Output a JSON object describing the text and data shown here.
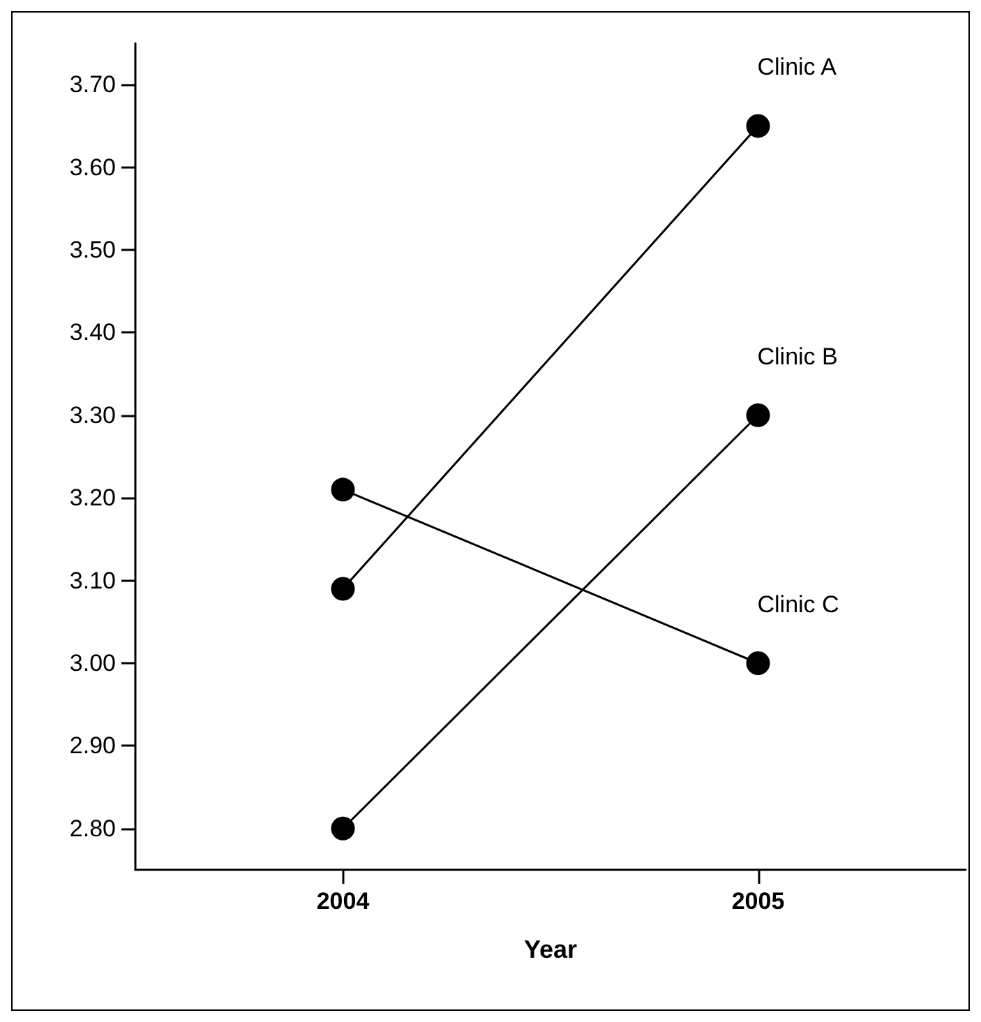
{
  "chart_data": {
    "type": "line",
    "xlabel": "Year",
    "categories": [
      "2004",
      "2005"
    ],
    "series": [
      {
        "name": "Clinic A",
        "color": "#000000",
        "values": [
          3.09,
          3.65
        ]
      },
      {
        "name": "Clinic B",
        "color": "#000000",
        "values": [
          2.8,
          3.3
        ]
      },
      {
        "name": "Clinic C",
        "color": "#000000",
        "values": [
          3.21,
          3.0
        ]
      }
    ],
    "ylim": [
      2.75,
      3.75
    ],
    "yticks": [
      {
        "value": 2.8,
        "label": "2.80"
      },
      {
        "value": 2.9,
        "label": "2.90"
      },
      {
        "value": 3.0,
        "label": "3.00"
      },
      {
        "value": 3.1,
        "label": "3.10"
      },
      {
        "value": 3.2,
        "label": "3.20"
      },
      {
        "value": 3.3,
        "label": "3.30"
      },
      {
        "value": 3.4,
        "label": "3.40"
      },
      {
        "value": 3.5,
        "label": "3.50"
      },
      {
        "value": 3.6,
        "label": "3.60"
      },
      {
        "value": 3.7,
        "label": "3.70"
      }
    ],
    "grid": false,
    "legend": false,
    "marker": "circle",
    "line_style": "solid"
  }
}
